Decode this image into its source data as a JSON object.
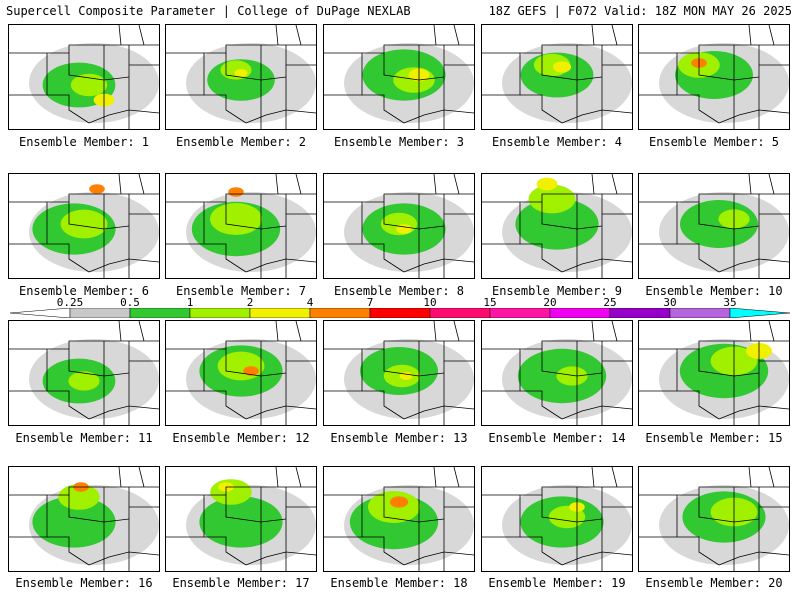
{
  "header": {
    "left": "Supercell Composite Parameter | College of DuPage NEXLAB",
    "right": "18Z GEFS | F072 Valid: 18Z MON MAY 26 2025"
  },
  "panels": [
    {
      "label": "Ensemble Member: 1",
      "blobs": [
        {
          "c": "#32c832",
          "cx": 70,
          "cy": 60,
          "r": 28
        },
        {
          "c": "#a0f000",
          "cx": 80,
          "cy": 60,
          "r": 14
        },
        {
          "c": "#f0f000",
          "cx": 95,
          "cy": 75,
          "r": 8
        }
      ]
    },
    {
      "label": "Ensemble Member: 2",
      "blobs": [
        {
          "c": "#32c832",
          "cx": 75,
          "cy": 55,
          "r": 26
        },
        {
          "c": "#a0f000",
          "cx": 70,
          "cy": 45,
          "r": 12
        },
        {
          "c": "#f0f000",
          "cx": 75,
          "cy": 48,
          "r": 5
        }
      ]
    },
    {
      "label": "Ensemble Member: 3",
      "blobs": [
        {
          "c": "#32c832",
          "cx": 80,
          "cy": 50,
          "r": 32
        },
        {
          "c": "#a0f000",
          "cx": 90,
          "cy": 55,
          "r": 16
        },
        {
          "c": "#f0f000",
          "cx": 95,
          "cy": 50,
          "r": 8
        }
      ]
    },
    {
      "label": "Ensemble Member: 4",
      "blobs": [
        {
          "c": "#32c832",
          "cx": 75,
          "cy": 50,
          "r": 28
        },
        {
          "c": "#a0f000",
          "cx": 70,
          "cy": 40,
          "r": 14
        },
        {
          "c": "#f0f000",
          "cx": 80,
          "cy": 42,
          "r": 7
        }
      ]
    },
    {
      "label": "Ensemble Member: 5",
      "blobs": [
        {
          "c": "#32c832",
          "cx": 75,
          "cy": 50,
          "r": 30
        },
        {
          "c": "#a0f000",
          "cx": 60,
          "cy": 40,
          "r": 16
        },
        {
          "c": "#ff7f00",
          "cx": 60,
          "cy": 38,
          "r": 6
        }
      ]
    },
    {
      "label": "Ensemble Member: 6",
      "blobs": [
        {
          "c": "#32c832",
          "cx": 65,
          "cy": 55,
          "r": 32
        },
        {
          "c": "#a0f000",
          "cx": 75,
          "cy": 50,
          "r": 18
        },
        {
          "c": "#ff7f00",
          "cx": 88,
          "cy": 15,
          "r": 6
        }
      ]
    },
    {
      "label": "Ensemble Member: 7",
      "blobs": [
        {
          "c": "#32c832",
          "cx": 70,
          "cy": 55,
          "r": 34
        },
        {
          "c": "#a0f000",
          "cx": 70,
          "cy": 45,
          "r": 20
        },
        {
          "c": "#ff7f00",
          "cx": 70,
          "cy": 18,
          "r": 6
        }
      ]
    },
    {
      "label": "Ensemble Member: 8",
      "blobs": [
        {
          "c": "#32c832",
          "cx": 80,
          "cy": 55,
          "r": 32
        },
        {
          "c": "#a0f000",
          "cx": 75,
          "cy": 50,
          "r": 14
        },
        {
          "c": "#f0f000",
          "cx": 80,
          "cy": 55,
          "r": 6
        }
      ]
    },
    {
      "label": "Ensemble Member: 9",
      "blobs": [
        {
          "c": "#32c832",
          "cx": 75,
          "cy": 50,
          "r": 32
        },
        {
          "c": "#a0f000",
          "cx": 70,
          "cy": 25,
          "r": 18
        },
        {
          "c": "#f0f000",
          "cx": 65,
          "cy": 10,
          "r": 8
        }
      ]
    },
    {
      "label": "Ensemble Member: 10",
      "blobs": [
        {
          "c": "#32c832",
          "cx": 80,
          "cy": 50,
          "r": 30
        },
        {
          "c": "#a0f000",
          "cx": 95,
          "cy": 45,
          "r": 12
        }
      ]
    },
    {
      "label": "Ensemble Member: 11",
      "blobs": [
        {
          "c": "#32c832",
          "cx": 70,
          "cy": 60,
          "r": 28
        },
        {
          "c": "#a0f000",
          "cx": 75,
          "cy": 60,
          "r": 12
        }
      ]
    },
    {
      "label": "Ensemble Member: 12",
      "blobs": [
        {
          "c": "#32c832",
          "cx": 75,
          "cy": 50,
          "r": 32
        },
        {
          "c": "#a0f000",
          "cx": 75,
          "cy": 45,
          "r": 18
        },
        {
          "c": "#ff7f00",
          "cx": 85,
          "cy": 50,
          "r": 6
        }
      ]
    },
    {
      "label": "Ensemble Member: 13",
      "blobs": [
        {
          "c": "#32c832",
          "cx": 75,
          "cy": 50,
          "r": 30
        },
        {
          "c": "#a0f000",
          "cx": 78,
          "cy": 55,
          "r": 14
        },
        {
          "c": "#f0f000",
          "cx": 82,
          "cy": 55,
          "r": 5
        }
      ]
    },
    {
      "label": "Ensemble Member: 14",
      "blobs": [
        {
          "c": "#32c832",
          "cx": 80,
          "cy": 55,
          "r": 34
        },
        {
          "c": "#a0f000",
          "cx": 90,
          "cy": 55,
          "r": 12
        }
      ]
    },
    {
      "label": "Ensemble Member: 15",
      "blobs": [
        {
          "c": "#32c832",
          "cx": 85,
          "cy": 50,
          "r": 34
        },
        {
          "c": "#a0f000",
          "cx": 95,
          "cy": 40,
          "r": 18
        },
        {
          "c": "#f0f000",
          "cx": 120,
          "cy": 30,
          "r": 10
        }
      ]
    },
    {
      "label": "Ensemble Member: 16",
      "blobs": [
        {
          "c": "#32c832",
          "cx": 65,
          "cy": 55,
          "r": 32
        },
        {
          "c": "#a0f000",
          "cx": 70,
          "cy": 30,
          "r": 16
        },
        {
          "c": "#ff7f00",
          "cx": 72,
          "cy": 20,
          "r": 6
        }
      ]
    },
    {
      "label": "Ensemble Member: 17",
      "blobs": [
        {
          "c": "#32c832",
          "cx": 75,
          "cy": 55,
          "r": 32
        },
        {
          "c": "#a0f000",
          "cx": 65,
          "cy": 25,
          "r": 16
        },
        {
          "c": "#f0f000",
          "cx": 60,
          "cy": 20,
          "r": 6
        }
      ]
    },
    {
      "label": "Ensemble Member: 18",
      "blobs": [
        {
          "c": "#32c832",
          "cx": 70,
          "cy": 55,
          "r": 34
        },
        {
          "c": "#a0f000",
          "cx": 70,
          "cy": 40,
          "r": 20
        },
        {
          "c": "#ff7f00",
          "cx": 75,
          "cy": 35,
          "r": 7
        }
      ]
    },
    {
      "label": "Ensemble Member: 19",
      "blobs": [
        {
          "c": "#32c832",
          "cx": 80,
          "cy": 55,
          "r": 32
        },
        {
          "c": "#a0f000",
          "cx": 85,
          "cy": 50,
          "r": 14
        },
        {
          "c": "#f0f000",
          "cx": 95,
          "cy": 40,
          "r": 6
        }
      ]
    },
    {
      "label": "Ensemble Member: 20",
      "blobs": [
        {
          "c": "#32c832",
          "cx": 85,
          "cy": 50,
          "r": 32
        },
        {
          "c": "#a0f000",
          "cx": 95,
          "cy": 45,
          "r": 18
        }
      ]
    }
  ],
  "colorbar": {
    "labels": [
      "0.25",
      "0.5",
      "1",
      "2",
      "4",
      "7",
      "10",
      "15",
      "20",
      "25",
      "30",
      "35"
    ],
    "colors": [
      "#c8c8c8",
      "#32c832",
      "#a0f000",
      "#f0f000",
      "#ff7f00",
      "#ff0000",
      "#ff0a6e",
      "#ff14a5",
      "#f000f0",
      "#9600c8",
      "#b464dc",
      "#00ffff"
    ]
  },
  "colors": {
    "gray_fill": "#c8c8c8"
  }
}
